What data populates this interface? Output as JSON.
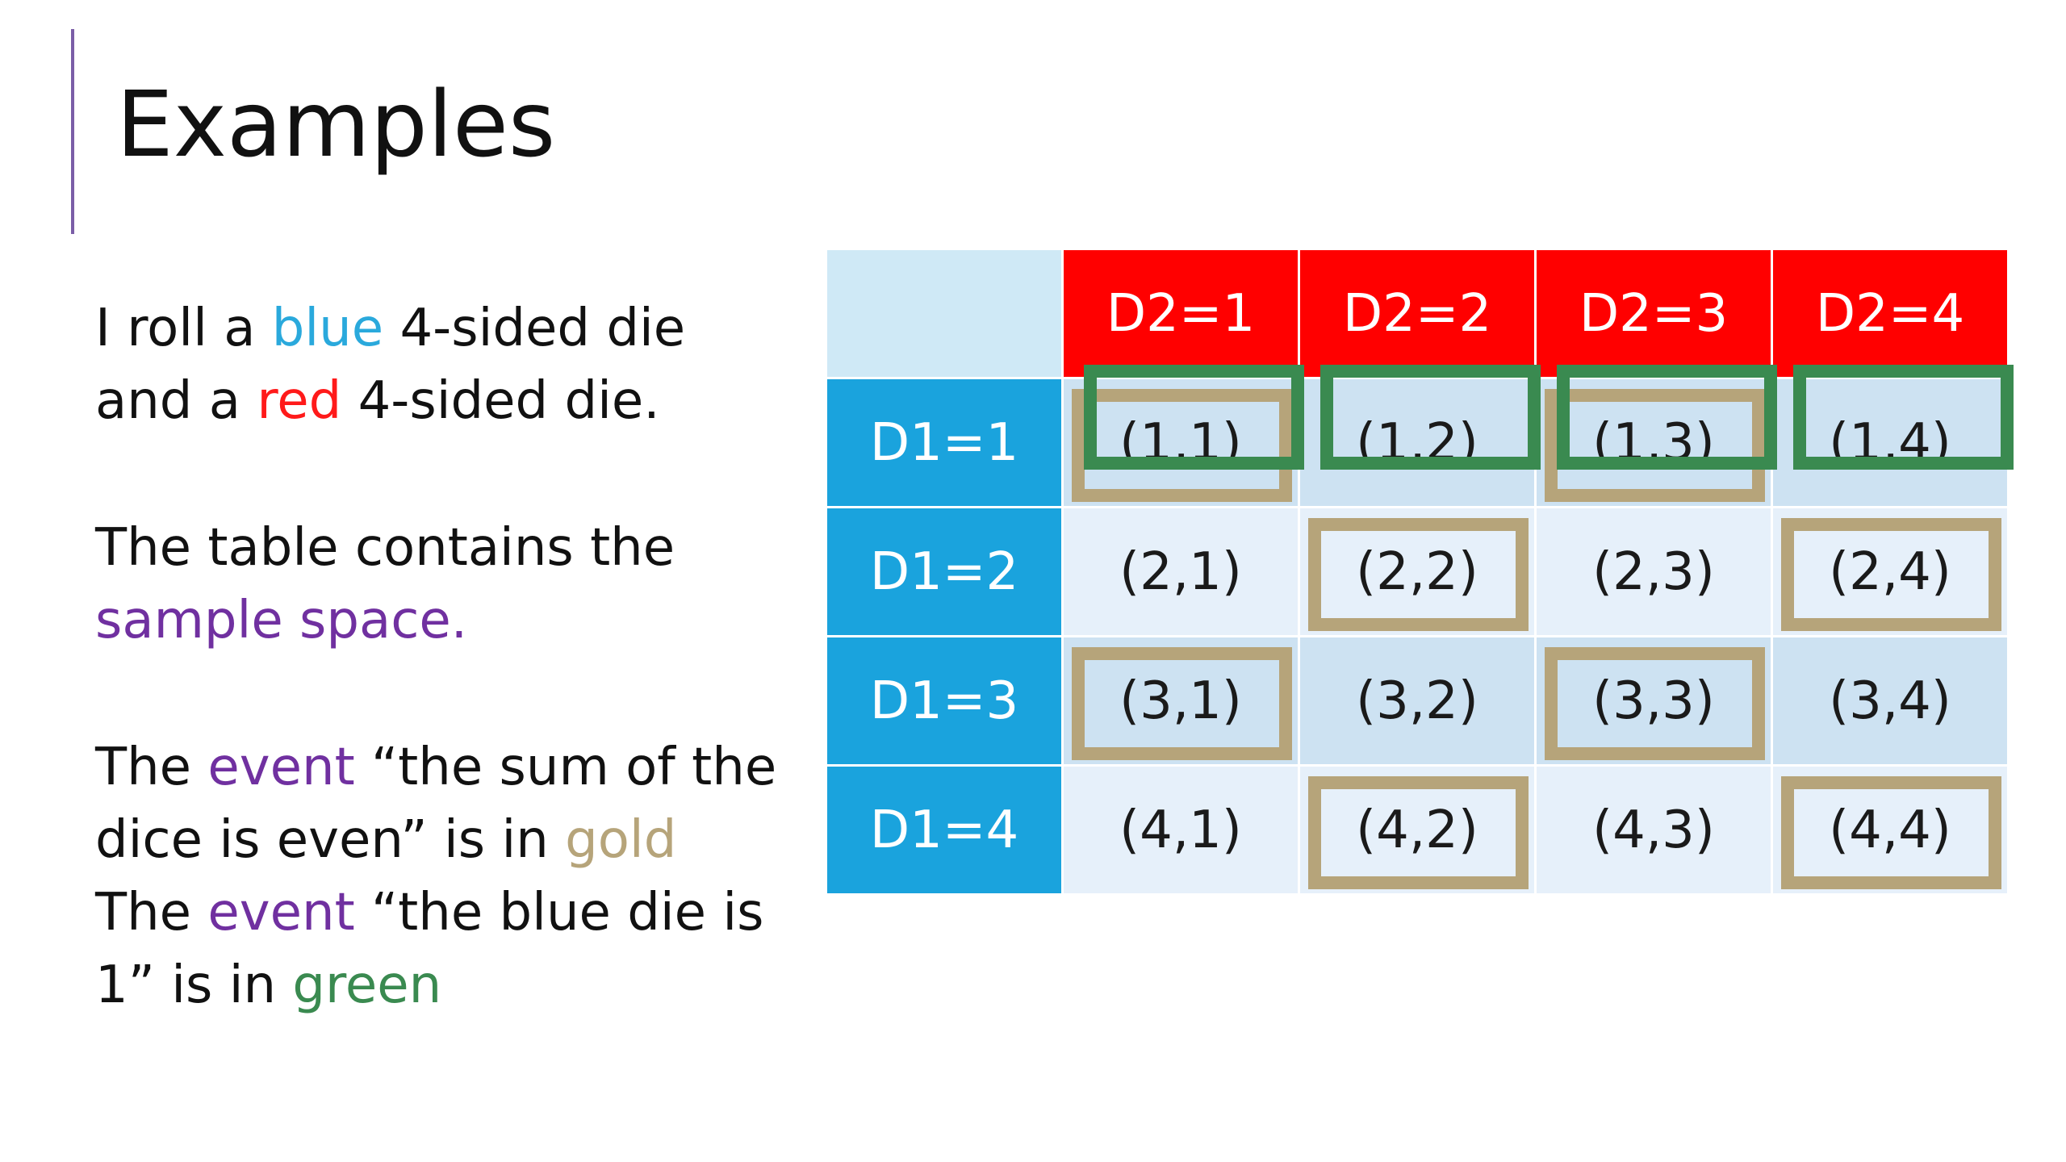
{
  "slide": {
    "title": "Examples",
    "paragraph1": {
      "t1": "I roll a ",
      "blue_word": "blue",
      "t2": " 4-sided die",
      "t3": "and a ",
      "red_word": "red",
      "t4": " 4-sided die."
    },
    "paragraph2": {
      "line1": "The table contains the",
      "sample_space": "sample space."
    },
    "paragraph3": {
      "l1_a": "The ",
      "l1_event": "event",
      "l1_b": " “the sum of the",
      "l2_a": "dice is even” is in ",
      "l2_gold": "gold",
      "l3_a": "The ",
      "l3_event": "event",
      "l3_b": " “the blue die is",
      "l4_a": "1” is in ",
      "l4_green": "green"
    }
  },
  "colors": {
    "blue": "#2aa9dc",
    "red": "#ff1a1a",
    "purple": "#7030a0",
    "gold": "#b6a47a",
    "green": "#3a8a50",
    "header_red": "#ff0000",
    "header_blue": "#1aa3dd"
  },
  "table": {
    "column_headers": [
      "D2=1",
      "D2=2",
      "D2=3",
      "D2=4"
    ],
    "row_headers": [
      "D1=1",
      "D1=2",
      "D1=3",
      "D1=4"
    ],
    "cells": [
      [
        "(1,1)",
        "(1,2)",
        "(1,3)",
        "(1,4)"
      ],
      [
        "(2,1)",
        "(2,2)",
        "(2,3)",
        "(2,4)"
      ],
      [
        "(3,1)",
        "(3,2)",
        "(3,3)",
        "(3,4)"
      ],
      [
        "(4,1)",
        "(4,2)",
        "(4,3)",
        "(4,4)"
      ]
    ],
    "gold_event_cells": [
      "(1,1)",
      "(1,3)",
      "(2,2)",
      "(2,4)",
      "(3,1)",
      "(3,3)",
      "(4,2)",
      "(4,4)"
    ],
    "green_event_cells": [
      "(1,1)",
      "(1,2)",
      "(1,3)",
      "(1,4)"
    ]
  }
}
